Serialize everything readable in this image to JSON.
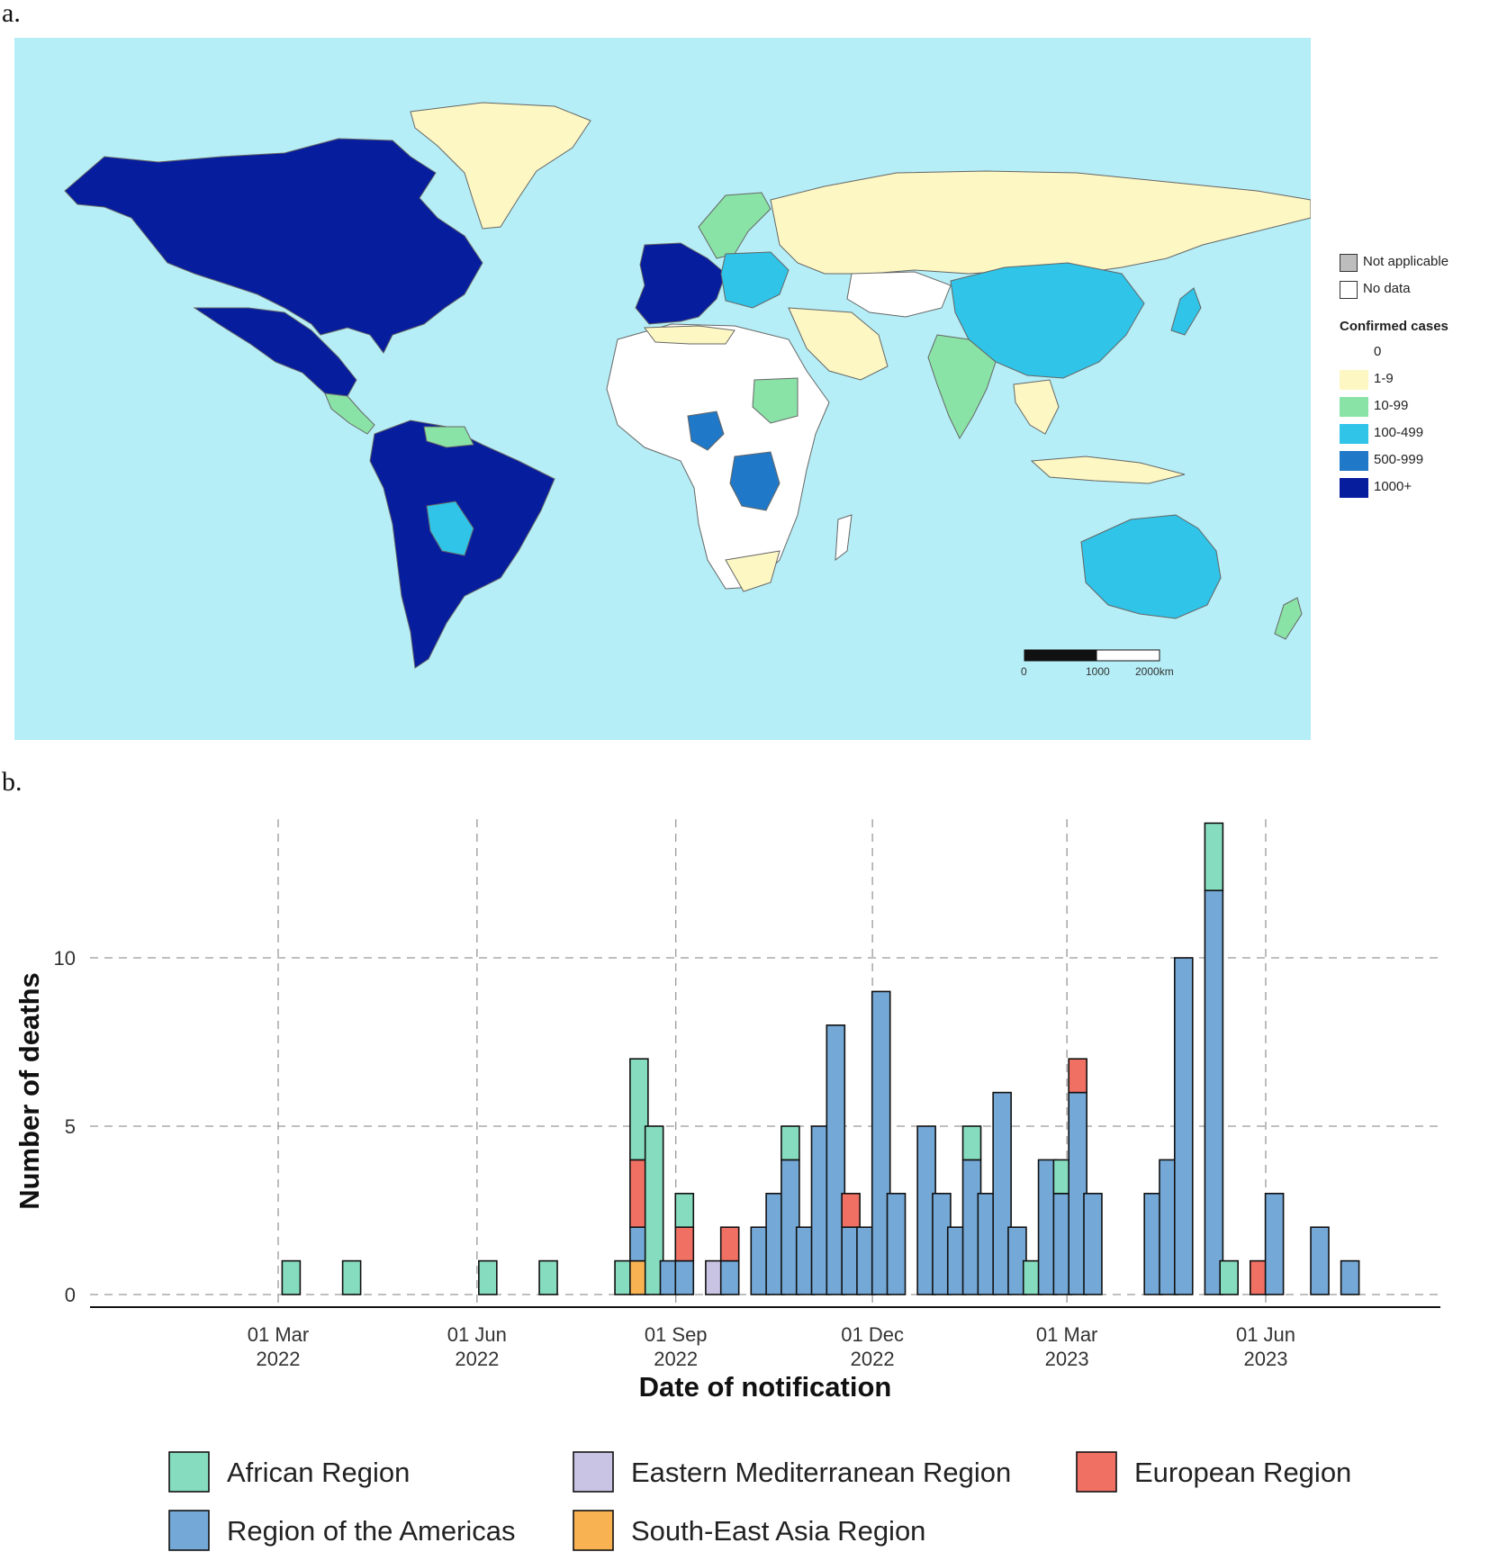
{
  "panel_labels": {
    "a": "a.",
    "b": "b."
  },
  "map": {
    "legend_na": [
      {
        "label": "Not applicable",
        "color": "#bdbdbd"
      },
      {
        "label": "No data",
        "color": "#ffffff"
      }
    ],
    "confirmed_title": "Confirmed cases",
    "confirmed_bins": [
      {
        "label": "0",
        "color": "#ffffff"
      },
      {
        "label": "1-9",
        "color": "#fdf7c3"
      },
      {
        "label": "10-99",
        "color": "#8ae3a6"
      },
      {
        "label": "100-499",
        "color": "#2fc4e8"
      },
      {
        "label": "500-999",
        "color": "#1f78c8"
      },
      {
        "label": "1000+",
        "color": "#061d9e"
      }
    ],
    "scalebar": {
      "labels": [
        "0",
        "1000",
        "2000km"
      ]
    },
    "colors": {
      "ocean": "#b5eef6",
      "border": "#666666"
    }
  },
  "chart_data": {
    "type": "bar",
    "stacked": true,
    "xlabel": "Date of notification",
    "ylabel": "Number of deaths",
    "ylim": [
      0,
      14
    ],
    "y_ticks": [
      0,
      5,
      10
    ],
    "x_ticks": [
      {
        "date": "2022-03-01",
        "label": [
          "01 Mar",
          "2022"
        ]
      },
      {
        "date": "2022-06-01",
        "label": [
          "01 Jun",
          "2022"
        ]
      },
      {
        "date": "2022-09-01",
        "label": [
          "01 Sep",
          "2022"
        ]
      },
      {
        "date": "2022-12-01",
        "label": [
          "01 Dec",
          "2022"
        ]
      },
      {
        "date": "2023-03-01",
        "label": [
          "01 Mar",
          "2023"
        ]
      },
      {
        "date": "2023-06-01",
        "label": [
          "01 Jun",
          "2023"
        ]
      }
    ],
    "grid": true,
    "legend_position": "bottom",
    "series": [
      {
        "name": "African Region",
        "color": "#86dcbf"
      },
      {
        "name": "Eastern Mediterranean Region",
        "color": "#c9c4e4"
      },
      {
        "name": "European Region",
        "color": "#f07064"
      },
      {
        "name": "Region of the Americas",
        "color": "#74a8d6"
      },
      {
        "name": "South-East Asia Region",
        "color": "#f9b252"
      }
    ],
    "stack_order": [
      "South-East Asia Region",
      "Eastern Mediterranean Region",
      "Region of the Americas",
      "European Region",
      "African Region"
    ],
    "weeks": [
      {
        "date": "2022-03-07",
        "African Region": 1
      },
      {
        "date": "2022-04-04",
        "African Region": 1
      },
      {
        "date": "2022-06-06",
        "African Region": 1
      },
      {
        "date": "2022-07-04",
        "African Region": 1
      },
      {
        "date": "2022-08-08",
        "African Region": 1
      },
      {
        "date": "2022-08-15",
        "South-East Asia Region": 1,
        "Region of the Americas": 1,
        "European Region": 2,
        "African Region": 3
      },
      {
        "date": "2022-08-22",
        "African Region": 5
      },
      {
        "date": "2022-08-29",
        "Region of the Americas": 1
      },
      {
        "date": "2022-09-05",
        "Region of the Americas": 1,
        "European Region": 1,
        "African Region": 1
      },
      {
        "date": "2022-09-19",
        "Eastern Mediterranean Region": 1
      },
      {
        "date": "2022-09-26",
        "Region of the Americas": 1,
        "European Region": 1
      },
      {
        "date": "2022-10-10",
        "Region of the Americas": 2
      },
      {
        "date": "2022-10-17",
        "Region of the Americas": 3
      },
      {
        "date": "2022-10-24",
        "Region of the Americas": 4,
        "African Region": 1
      },
      {
        "date": "2022-10-31",
        "Region of the Americas": 2
      },
      {
        "date": "2022-11-07",
        "Region of the Americas": 5
      },
      {
        "date": "2022-11-14",
        "Region of the Americas": 8
      },
      {
        "date": "2022-11-21",
        "Region of the Americas": 2,
        "European Region": 1
      },
      {
        "date": "2022-11-28",
        "Region of the Americas": 2
      },
      {
        "date": "2022-12-05",
        "Region of the Americas": 9
      },
      {
        "date": "2022-12-12",
        "Region of the Americas": 3
      },
      {
        "date": "2022-12-26",
        "Region of the Americas": 5
      },
      {
        "date": "2023-01-02",
        "Region of the Americas": 3
      },
      {
        "date": "2023-01-09",
        "Region of the Americas": 2
      },
      {
        "date": "2023-01-16",
        "Region of the Americas": 4,
        "African Region": 1
      },
      {
        "date": "2023-01-23",
        "Region of the Americas": 3
      },
      {
        "date": "2023-01-30",
        "Region of the Americas": 6
      },
      {
        "date": "2023-02-06",
        "Region of the Americas": 2
      },
      {
        "date": "2023-02-13",
        "African Region": 1
      },
      {
        "date": "2023-02-20",
        "Region of the Americas": 4
      },
      {
        "date": "2023-02-27",
        "Region of the Americas": 3,
        "African Region": 1
      },
      {
        "date": "2023-03-06",
        "Region of the Americas": 6,
        "European Region": 1
      },
      {
        "date": "2023-03-13",
        "Region of the Americas": 3
      },
      {
        "date": "2023-04-10",
        "Region of the Americas": 3
      },
      {
        "date": "2023-04-17",
        "Region of the Americas": 4
      },
      {
        "date": "2023-04-24",
        "Region of the Americas": 10
      },
      {
        "date": "2023-05-08",
        "Region of the Americas": 12,
        "African Region": 2
      },
      {
        "date": "2023-05-15",
        "African Region": 1
      },
      {
        "date": "2023-05-29",
        "European Region": 1
      },
      {
        "date": "2023-06-05",
        "Region of the Americas": 3
      },
      {
        "date": "2023-06-26",
        "Region of the Americas": 2
      },
      {
        "date": "2023-07-10",
        "Region of the Americas": 1
      }
    ]
  }
}
